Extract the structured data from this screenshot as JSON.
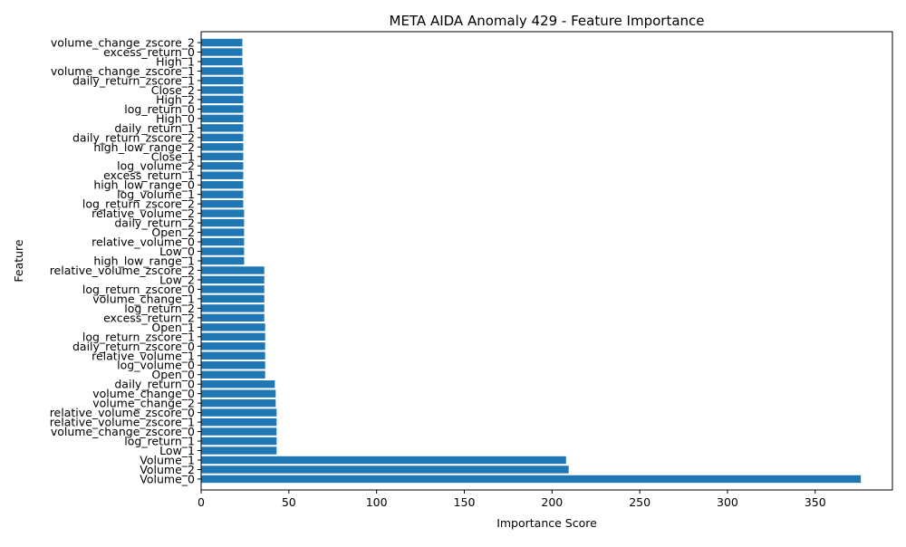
{
  "chart_data": {
    "type": "bar",
    "orientation": "horizontal",
    "title": "META AIDA Anomaly 429 - Feature Importance",
    "xlabel": "Importance Score",
    "ylabel": "Feature",
    "xlim": [
      0,
      394
    ],
    "xticks": [
      0,
      50,
      100,
      150,
      200,
      250,
      300,
      350
    ],
    "grid": false,
    "bar_color": "#1f77b4",
    "categories": [
      "Volume_0",
      "Volume_2",
      "Volume_1",
      "Low_1",
      "log_return_1",
      "volume_change_zscore_0",
      "relative_volume_zscore_1",
      "relative_volume_zscore_0",
      "volume_change_2",
      "volume_change_0",
      "daily_return_0",
      "Open_0",
      "log_volume_0",
      "relative_volume_1",
      "daily_return_zscore_0",
      "log_return_zscore_1",
      "Open_1",
      "excess_return_2",
      "log_return_2",
      "volume_change_1",
      "log_return_zscore_0",
      "Low_2",
      "relative_volume_zscore_2",
      "high_low_range_1",
      "Low_0",
      "relative_volume_0",
      "Open_2",
      "daily_return_2",
      "relative_volume_2",
      "log_return_zscore_2",
      "log_volume_1",
      "high_low_range_0",
      "excess_return_1",
      "log_volume_2",
      "Close_1",
      "high_low_range_2",
      "daily_return_zscore_2",
      "daily_return_1",
      "High_0",
      "log_return_0",
      "High_2",
      "Close_2",
      "daily_return_zscore_1",
      "volume_change_zscore_1",
      "High_1",
      "excess_return_0",
      "volume_change_zscore_2"
    ],
    "values": [
      376,
      209.5,
      208,
      43,
      43,
      43,
      43,
      43,
      42.5,
      42.5,
      42,
      36.5,
      36.5,
      36.5,
      36.5,
      36.5,
      36.5,
      36,
      36,
      36,
      36,
      36,
      36,
      24.5,
      24.5,
      24.5,
      24.5,
      24.5,
      24.5,
      24,
      24,
      24,
      24,
      24,
      24,
      24,
      24,
      24,
      24,
      24,
      24,
      24,
      24,
      24,
      23.5,
      23.5,
      23.5
    ]
  }
}
